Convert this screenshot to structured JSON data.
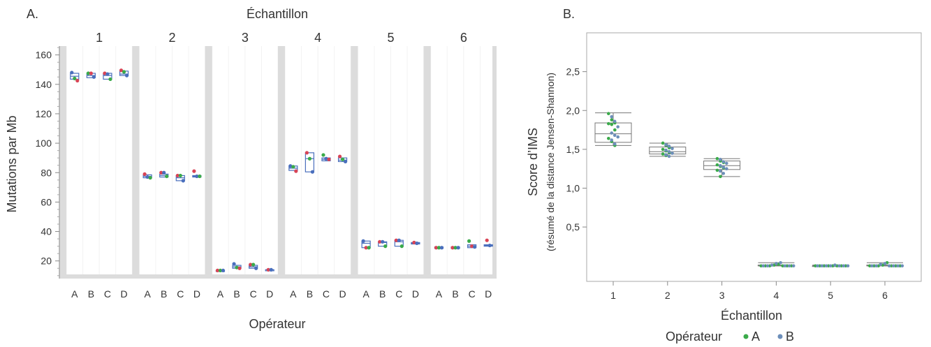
{
  "colors": {
    "red": "#d94456",
    "green": "#3aaa4a",
    "blue": "#4a6fbd",
    "bluegrey": "#6d8fba",
    "band": "#dcdcdc",
    "panel": "#f2f2f2"
  },
  "chart_data": [
    {
      "panel_label": "A.",
      "type": "box",
      "title": "Échantillon",
      "xlabel": "Opérateur",
      "ylabel": "Mutations par Mb",
      "ylim": [
        8,
        166
      ],
      "yticks": [
        20,
        40,
        60,
        80,
        100,
        120,
        140,
        160
      ],
      "groups": [
        {
          "label": "1",
          "operators": [
            {
              "name": "A",
              "q1": 143.5,
              "median": 145.5,
              "q3": 147.5,
              "points": [
                {
                  "v": 148,
                  "c": "blue"
                },
                {
                  "v": 144,
                  "c": "green"
                },
                {
                  "v": 142.5,
                  "c": "red"
                }
              ]
            },
            {
              "name": "B",
              "q1": 144.5,
              "median": 146.0,
              "q3": 147.5,
              "points": [
                {
                  "v": 147.5,
                  "c": "green"
                },
                {
                  "v": 147.5,
                  "c": "red"
                },
                {
                  "v": 145,
                  "c": "blue"
                }
              ]
            },
            {
              "name": "C",
              "q1": 143.5,
              "median": 146.0,
              "q3": 147.5,
              "points": [
                {
                  "v": 147.5,
                  "c": "red"
                },
                {
                  "v": 147,
                  "c": "blue"
                },
                {
                  "v": 143.5,
                  "c": "green"
                }
              ]
            },
            {
              "name": "D",
              "q1": 146.0,
              "median": 147.0,
              "q3": 149.0,
              "points": [
                {
                  "v": 149.5,
                  "c": "red"
                },
                {
                  "v": 148.5,
                  "c": "green"
                },
                {
                  "v": 146,
                  "c": "blue"
                }
              ]
            }
          ]
        },
        {
          "label": "2",
          "operators": [
            {
              "name": "A",
              "q1": 76.5,
              "median": 77.5,
              "q3": 78.5,
              "points": [
                {
                  "v": 79,
                  "c": "red"
                },
                {
                  "v": 77,
                  "c": "blue"
                },
                {
                  "v": 76.5,
                  "c": "green"
                }
              ]
            },
            {
              "name": "B",
              "q1": 77.0,
              "median": 78.0,
              "q3": 79.0,
              "points": [
                {
                  "v": 80,
                  "c": "red"
                },
                {
                  "v": 80,
                  "c": "blue"
                },
                {
                  "v": 77.5,
                  "c": "green"
                }
              ]
            },
            {
              "name": "C",
              "q1": 74.5,
              "median": 76.5,
              "q3": 78.0,
              "points": [
                {
                  "v": 78,
                  "c": "red"
                },
                {
                  "v": 78,
                  "c": "green"
                },
                {
                  "v": 74.5,
                  "c": "blue"
                }
              ]
            },
            {
              "name": "D",
              "q1": 77.0,
              "median": 77.5,
              "q3": 78.0,
              "points": [
                {
                  "v": 81,
                  "c": "red"
                },
                {
                  "v": 77.5,
                  "c": "blue"
                },
                {
                  "v": 77.5,
                  "c": "green"
                }
              ]
            }
          ]
        },
        {
          "label": "3",
          "operators": [
            {
              "name": "A",
              "q1": 13.5,
              "median": 13.5,
              "q3": 13.5,
              "points": [
                {
                  "v": 13.5,
                  "c": "red"
                },
                {
                  "v": 13.5,
                  "c": "green"
                },
                {
                  "v": 13.5,
                  "c": "blue"
                }
              ]
            },
            {
              "name": "B",
              "q1": 15.0,
              "median": 16.0,
              "q3": 17.0,
              "points": [
                {
                  "v": 18,
                  "c": "blue"
                },
                {
                  "v": 15.5,
                  "c": "green"
                },
                {
                  "v": 15,
                  "c": "red"
                }
              ]
            },
            {
              "name": "C",
              "q1": 15.0,
              "median": 16.0,
              "q3": 17.0,
              "points": [
                {
                  "v": 17.5,
                  "c": "red"
                },
                {
                  "v": 17.5,
                  "c": "green"
                },
                {
                  "v": 15,
                  "c": "blue"
                }
              ]
            },
            {
              "name": "D",
              "q1": 14.0,
              "median": 14.0,
              "q3": 14.0,
              "points": [
                {
                  "v": 14,
                  "c": "red"
                },
                {
                  "v": 14,
                  "c": "blue"
                }
              ]
            }
          ]
        },
        {
          "label": "4",
          "operators": [
            {
              "name": "A",
              "q1": 81.5,
              "median": 83.0,
              "q3": 84.5,
              "points": [
                {
                  "v": 84.5,
                  "c": "blue"
                },
                {
                  "v": 84,
                  "c": "green"
                },
                {
                  "v": 81,
                  "c": "red"
                }
              ]
            },
            {
              "name": "B",
              "q1": 80.5,
              "median": 89.5,
              "q3": 93.5,
              "points": [
                {
                  "v": 93.5,
                  "c": "red"
                },
                {
                  "v": 89.5,
                  "c": "green"
                },
                {
                  "v": 80.5,
                  "c": "blue"
                }
              ]
            },
            {
              "name": "C",
              "q1": 88.0,
              "median": 89.0,
              "q3": 90.0,
              "points": [
                {
                  "v": 92,
                  "c": "green"
                },
                {
                  "v": 89.5,
                  "c": "blue"
                },
                {
                  "v": 89,
                  "c": "red"
                }
              ]
            },
            {
              "name": "D",
              "q1": 87.5,
              "median": 88.5,
              "q3": 90.0,
              "points": [
                {
                  "v": 91,
                  "c": "red"
                },
                {
                  "v": 89,
                  "c": "green"
                },
                {
                  "v": 87.5,
                  "c": "blue"
                }
              ]
            }
          ]
        },
        {
          "label": "5",
          "operators": [
            {
              "name": "A",
              "q1": 29.0,
              "median": 32.0,
              "q3": 33.5,
              "points": [
                {
                  "v": 33.5,
                  "c": "blue"
                },
                {
                  "v": 29,
                  "c": "red"
                },
                {
                  "v": 29,
                  "c": "green"
                }
              ]
            },
            {
              "name": "B",
              "q1": 30.0,
              "median": 32.5,
              "q3": 33.0,
              "points": [
                {
                  "v": 33,
                  "c": "red"
                },
                {
                  "v": 33,
                  "c": "blue"
                },
                {
                  "v": 30,
                  "c": "green"
                }
              ]
            },
            {
              "name": "C",
              "q1": 30.0,
              "median": 33.0,
              "q3": 34.0,
              "points": [
                {
                  "v": 34,
                  "c": "red"
                },
                {
                  "v": 34,
                  "c": "blue"
                },
                {
                  "v": 30,
                  "c": "green"
                }
              ]
            },
            {
              "name": "D",
              "q1": 31.5,
              "median": 32.0,
              "q3": 32.5,
              "points": [
                {
                  "v": 32.5,
                  "c": "red"
                },
                {
                  "v": 32,
                  "c": "blue"
                }
              ]
            }
          ]
        },
        {
          "label": "6",
          "operators": [
            {
              "name": "A",
              "q1": 28.5,
              "median": 29.0,
              "q3": 29.5,
              "points": [
                {
                  "v": 29,
                  "c": "red"
                },
                {
                  "v": 29,
                  "c": "green"
                },
                {
                  "v": 29,
                  "c": "blue"
                }
              ]
            },
            {
              "name": "B",
              "q1": 28.5,
              "median": 29.0,
              "q3": 29.5,
              "points": [
                {
                  "v": 29,
                  "c": "red"
                },
                {
                  "v": 29,
                  "c": "green"
                },
                {
                  "v": 29,
                  "c": "blue"
                }
              ]
            },
            {
              "name": "C",
              "q1": 29.0,
              "median": 30.0,
              "q3": 31.0,
              "points": [
                {
                  "v": 33.5,
                  "c": "green"
                },
                {
                  "v": 30,
                  "c": "red"
                },
                {
                  "v": 29.5,
                  "c": "blue"
                }
              ]
            },
            {
              "name": "D",
              "q1": 30.0,
              "median": 30.5,
              "q3": 31.0,
              "points": [
                {
                  "v": 34,
                  "c": "red"
                },
                {
                  "v": 30.5,
                  "c": "blue"
                }
              ]
            }
          ]
        }
      ]
    },
    {
      "panel_label": "B.",
      "type": "box",
      "xlabel": "Échantillon",
      "ylabel": "Score d’IMS",
      "ylabel_sub": "(résumé de la distance Jensen-Shannon)",
      "ylim": [
        -0.2,
        3.0
      ],
      "yticks": [
        "0,5",
        "1,0",
        "1,5",
        "2,0",
        "2,5"
      ],
      "ytick_values": [
        0.5,
        1.0,
        1.5,
        2.0,
        2.5
      ],
      "categories": [
        "1",
        "2",
        "3",
        "4",
        "5",
        "6"
      ],
      "legend": {
        "title": "Opérateur",
        "entries": [
          {
            "name": "A",
            "color": "green"
          },
          {
            "name": "B",
            "color": "bluegrey"
          }
        ],
        "position": "bottom"
      },
      "boxes": [
        {
          "category": "1",
          "whisker_low": 1.55,
          "q1": 1.59,
          "median": 1.7,
          "q3": 1.84,
          "whisker_high": 1.97
        },
        {
          "category": "2",
          "whisker_low": 1.41,
          "q1": 1.44,
          "median": 1.47,
          "q3": 1.53,
          "whisker_high": 1.58
        },
        {
          "category": "3",
          "whisker_low": 1.15,
          "q1": 1.24,
          "median": 1.29,
          "q3": 1.35,
          "whisker_high": 1.38
        },
        {
          "category": "4",
          "whisker_low": 0.0,
          "q1": 0.0,
          "median": 0.0,
          "q3": 0.01,
          "whisker_high": 0.04
        },
        {
          "category": "5",
          "whisker_low": 0.0,
          "q1": 0.0,
          "median": 0.0,
          "q3": 0.0,
          "whisker_high": 0.01
        },
        {
          "category": "6",
          "whisker_low": 0.0,
          "q1": 0.0,
          "median": 0.0,
          "q3": 0.01,
          "whisker_high": 0.04
        }
      ],
      "points": [
        {
          "category": "1",
          "A": [
            1.96,
            1.88,
            1.84,
            1.83,
            1.82,
            1.75,
            1.64,
            1.6,
            1.55
          ],
          "B": [
            1.92,
            1.86,
            1.79,
            1.71,
            1.68,
            1.66,
            1.62,
            1.57
          ]
        },
        {
          "category": "2",
          "A": [
            1.58,
            1.55,
            1.52,
            1.5,
            1.48,
            1.46,
            1.44,
            1.42
          ],
          "B": [
            1.56,
            1.54,
            1.51,
            1.49,
            1.47,
            1.45,
            1.43,
            1.41
          ]
        },
        {
          "category": "3",
          "A": [
            1.38,
            1.35,
            1.33,
            1.3,
            1.28,
            1.26,
            1.23,
            1.15
          ],
          "B": [
            1.37,
            1.34,
            1.32,
            1.29,
            1.27,
            1.25,
            1.22,
            1.19
          ]
        },
        {
          "category": "4",
          "A": [
            0.0,
            0.0,
            0.0,
            0.01,
            0.02,
            0.0,
            0.0,
            0.0
          ],
          "B": [
            0.0,
            0.0,
            0.01,
            0.03,
            0.04,
            0.0,
            0.0,
            0.0
          ]
        },
        {
          "category": "5",
          "A": [
            0.0,
            0.0,
            0.0,
            0.0,
            0.0,
            0.0,
            0.0,
            0.0
          ],
          "B": [
            0.0,
            0.0,
            0.0,
            0.0,
            0.01,
            0.0,
            0.0,
            0.0
          ]
        },
        {
          "category": "6",
          "A": [
            0.0,
            0.0,
            0.0,
            0.01,
            0.04,
            0.0,
            0.0,
            0.0
          ],
          "B": [
            0.0,
            0.0,
            0.02,
            0.03,
            0.0,
            0.0,
            0.0,
            0.0
          ]
        }
      ]
    }
  ]
}
